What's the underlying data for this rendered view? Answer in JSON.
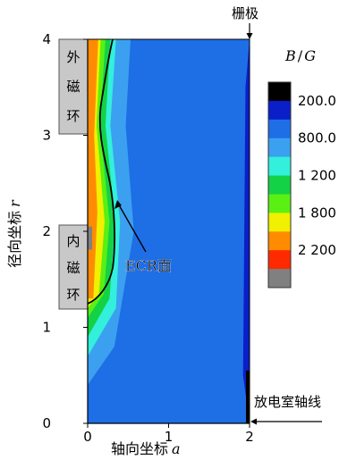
{
  "chart_data": {
    "type": "heatmap",
    "title": "",
    "xlabel": "轴向坐标 a",
    "ylabel": "径向坐标 r",
    "xlim": [
      0,
      2
    ],
    "ylim": [
      0,
      4
    ],
    "x_ticks": [
      "0",
      "1",
      "2"
    ],
    "y_ticks": [
      "0",
      "1",
      "2",
      "3",
      "4"
    ],
    "colorbar": {
      "label": "B / G",
      "tick_labels": [
        "200.0",
        "800.0",
        "1 200",
        "1 800",
        "2 200"
      ],
      "colors": [
        "#000000",
        "#0a1fc8",
        "#1e6ee6",
        "#3ca0f0",
        "#32f0dc",
        "#14d246",
        "#5af014",
        "#f0f000",
        "#ff8c00",
        "#ff2a00",
        "#808080"
      ]
    },
    "contour_levels": [
      {
        "color": "#ff2a00",
        "boundary": [
          [
            0,
            0.0
          ],
          [
            0,
            2.5
          ],
          [
            0,
            4.0
          ]
        ]
      },
      {
        "color": "#ff8c00",
        "boundary": [
          [
            0.07,
            1.3
          ],
          [
            0.12,
            2.2
          ],
          [
            0.08,
            3.0
          ],
          [
            0.13,
            4.0
          ]
        ]
      },
      {
        "color": "#f0f000",
        "boundary": [
          [
            0,
            1.2
          ],
          [
            0.14,
            1.35
          ],
          [
            0.21,
            2.1
          ],
          [
            0.11,
            3.1
          ],
          [
            0.16,
            4.0
          ]
        ]
      },
      {
        "color": "#5af014",
        "boundary": [
          [
            0,
            1.1
          ],
          [
            0.2,
            1.35
          ],
          [
            0.27,
            2.1
          ],
          [
            0.15,
            3.1
          ],
          [
            0.22,
            4.0
          ]
        ]
      },
      {
        "color": "#14d246",
        "boundary": [
          [
            0,
            0.9
          ],
          [
            0.27,
            1.3
          ],
          [
            0.34,
            2.1
          ],
          [
            0.22,
            3.1
          ],
          [
            0.28,
            4.0
          ]
        ]
      },
      {
        "color": "#32f0dc",
        "boundary": [
          [
            0,
            0.7
          ],
          [
            0.35,
            1.2
          ],
          [
            0.4,
            2.1
          ],
          [
            0.28,
            3.1
          ],
          [
            0.35,
            4.0
          ]
        ]
      },
      {
        "color": "#3ca0f0",
        "boundary": [
          [
            0,
            0.4
          ],
          [
            0.33,
            0.8
          ],
          [
            0.57,
            2.0
          ],
          [
            0.47,
            3.1
          ],
          [
            0.53,
            4.0
          ]
        ]
      },
      {
        "color": "#1e6ee6",
        "boundary": [
          [
            0,
            0.0
          ],
          [
            0.9,
            0.0
          ],
          [
            1.37,
            1.0
          ],
          [
            1.2,
            2.0
          ],
          [
            1.3,
            3.0
          ],
          [
            1.15,
            4.0
          ]
        ]
      },
      {
        "color": "#0a1fc8",
        "boundary": [
          [
            1.92,
            0.5
          ],
          [
            1.95,
            3.5
          ],
          [
            2,
            4.0
          ]
        ]
      }
    ],
    "annotations": [
      "ECR面",
      "外磁环",
      "内磁环",
      "栅极",
      "放电室轴线"
    ],
    "legend": "right",
    "grid": false
  },
  "labels": {
    "outer_ring": [
      "外",
      "磁",
      "环"
    ],
    "inner_ring": [
      "内",
      "磁",
      "环"
    ],
    "ecr": "ECR面",
    "grid_electrode": "栅极",
    "axis_line": "放电室轴线",
    "xlabel_text": "轴向坐标",
    "xlabel_var": "a",
    "ylabel_text": "径向坐标",
    "ylabel_var": "r",
    "cbar_B": "B",
    "cbar_sep": "/",
    "cbar_G": "G"
  }
}
